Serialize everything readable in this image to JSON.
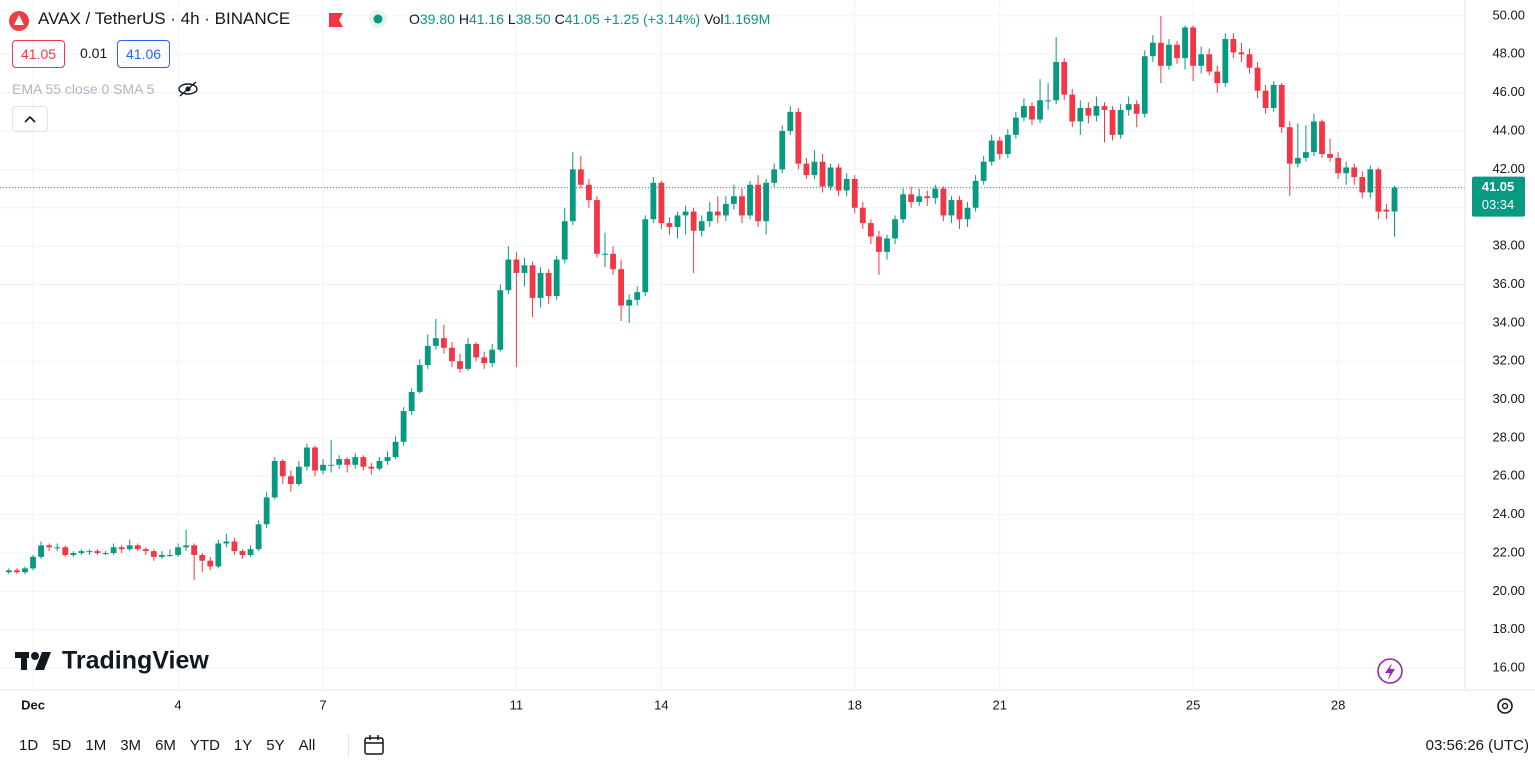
{
  "header": {
    "symbol": "AVAX / TetherUS · 4h · BINANCE",
    "o_label": "O",
    "open": "39.80",
    "h_label": "H",
    "high": "41.16",
    "l_label": "L",
    "low": "38.50",
    "c_label": "C",
    "close": "41.05",
    "change": "+1.25 (+3.14%)",
    "vol_label": "Vol",
    "volume": "1.169M",
    "sell": "41.05",
    "spread": "0.01",
    "buy": "41.06",
    "indicators": "EMA 55 close 0 SMA 5"
  },
  "watermark": "TradingView",
  "toolbar": {
    "ranges": [
      "1D",
      "5D",
      "1M",
      "3M",
      "6M",
      "YTD",
      "1Y",
      "5Y",
      "All"
    ],
    "clock": "03:56:26 (UTC)"
  },
  "chart_data": {
    "type": "candlestick",
    "up_color": "#089981",
    "down_color": "#f23645",
    "grid": true,
    "x": [
      -12,
      -8,
      -4,
      0,
      4,
      8,
      12,
      16,
      20,
      24,
      28,
      32,
      36,
      40,
      44,
      48,
      52,
      56,
      60,
      64,
      68,
      72,
      76,
      80,
      84,
      88,
      92,
      96,
      100,
      104,
      108,
      112,
      116,
      120,
      124,
      128,
      132,
      136,
      140,
      144,
      148,
      152,
      156,
      160,
      164,
      168,
      172,
      176,
      180,
      184,
      188,
      192,
      196,
      200,
      204,
      208,
      212,
      216,
      220,
      224,
      228,
      232,
      236,
      240,
      244,
      248,
      252,
      256,
      260,
      264,
      268,
      272,
      276,
      280,
      284,
      288,
      292,
      296,
      300,
      304,
      308,
      312,
      316,
      320,
      324,
      328,
      332,
      336,
      340,
      344,
      348,
      352,
      356,
      360,
      364,
      368,
      372,
      376,
      380,
      384,
      388,
      392,
      396,
      400,
      404,
      408,
      412,
      416,
      420,
      424,
      428,
      432,
      436,
      440,
      444,
      448,
      452,
      456,
      460,
      464,
      468,
      472,
      476,
      480,
      484,
      488,
      492,
      496,
      500,
      504,
      508,
      512,
      516,
      520,
      524,
      528,
      532,
      536,
      540,
      544,
      548,
      552,
      556,
      560,
      564,
      568,
      572,
      576,
      580,
      584,
      588,
      592,
      596,
      600,
      604,
      608,
      612,
      616,
      620,
      624,
      628,
      632,
      636,
      640,
      644,
      648,
      652,
      656,
      660,
      664,
      668,
      672,
      676
    ],
    "ohlc": [
      [
        21.0,
        21.2,
        20.9,
        21.1
      ],
      [
        21.1,
        21.2,
        20.9,
        21.0
      ],
      [
        21.0,
        21.3,
        20.9,
        21.2
      ],
      [
        21.2,
        21.9,
        21.1,
        21.8
      ],
      [
        21.8,
        22.6,
        21.7,
        22.4
      ],
      [
        22.4,
        22.5,
        22.1,
        22.3
      ],
      [
        22.3,
        22.5,
        22.1,
        22.3
      ],
      [
        22.3,
        22.4,
        21.8,
        21.9
      ],
      [
        21.9,
        22.1,
        21.8,
        22.0
      ],
      [
        22.0,
        22.2,
        21.9,
        22.1
      ],
      [
        22.1,
        22.2,
        21.9,
        22.1
      ],
      [
        22.1,
        22.2,
        21.9,
        22.0
      ],
      [
        22.0,
        22.1,
        21.9,
        22.0
      ],
      [
        22.0,
        22.5,
        21.9,
        22.3
      ],
      [
        22.3,
        22.4,
        22.0,
        22.2
      ],
      [
        22.2,
        22.7,
        22.1,
        22.4
      ],
      [
        22.4,
        22.5,
        22.1,
        22.2
      ],
      [
        22.2,
        22.3,
        21.9,
        22.1
      ],
      [
        22.1,
        22.2,
        21.6,
        21.8
      ],
      [
        21.8,
        22.1,
        21.7,
        21.9
      ],
      [
        21.9,
        22.2,
        21.8,
        21.9
      ],
      [
        21.9,
        22.5,
        21.8,
        22.3
      ],
      [
        22.3,
        23.2,
        22.1,
        22.4
      ],
      [
        22.4,
        22.5,
        20.6,
        21.9
      ],
      [
        21.9,
        22.0,
        21.0,
        21.6
      ],
      [
        21.6,
        21.8,
        21.1,
        21.3
      ],
      [
        21.3,
        22.7,
        21.2,
        22.5
      ],
      [
        22.5,
        23.0,
        22.3,
        22.6
      ],
      [
        22.6,
        22.8,
        21.9,
        22.1
      ],
      [
        22.1,
        22.2,
        21.7,
        21.9
      ],
      [
        21.9,
        22.4,
        21.8,
        22.2
      ],
      [
        22.2,
        23.7,
        22.1,
        23.5
      ],
      [
        23.5,
        25.2,
        23.3,
        24.9
      ],
      [
        24.9,
        27.0,
        24.8,
        26.8
      ],
      [
        26.8,
        26.9,
        25.6,
        26.0
      ],
      [
        26.0,
        26.3,
        25.2,
        25.6
      ],
      [
        25.6,
        26.8,
        25.5,
        26.5
      ],
      [
        26.5,
        27.7,
        26.3,
        27.5
      ],
      [
        27.5,
        27.6,
        26.0,
        26.3
      ],
      [
        26.3,
        26.9,
        26.1,
        26.6
      ],
      [
        26.6,
        27.9,
        26.2,
        26.6
      ],
      [
        26.6,
        27.1,
        26.4,
        26.9
      ],
      [
        26.9,
        27.0,
        26.2,
        26.6
      ],
      [
        26.6,
        27.2,
        26.4,
        27.0
      ],
      [
        27.0,
        27.1,
        26.3,
        26.5
      ],
      [
        26.5,
        26.7,
        26.1,
        26.4
      ],
      [
        26.4,
        27.0,
        26.3,
        26.8
      ],
      [
        26.8,
        27.3,
        26.6,
        27.0
      ],
      [
        27.0,
        28.1,
        26.9,
        27.8
      ],
      [
        27.8,
        29.6,
        27.6,
        29.4
      ],
      [
        29.4,
        30.6,
        29.2,
        30.4
      ],
      [
        30.4,
        32.1,
        30.3,
        31.8
      ],
      [
        31.8,
        33.4,
        31.6,
        32.8
      ],
      [
        32.8,
        34.2,
        32.6,
        33.2
      ],
      [
        33.2,
        33.9,
        32.4,
        32.7
      ],
      [
        32.7,
        33.0,
        31.7,
        32.0
      ],
      [
        32.0,
        32.4,
        31.4,
        31.6
      ],
      [
        31.6,
        33.2,
        31.5,
        32.9
      ],
      [
        32.9,
        33.0,
        32.0,
        32.2
      ],
      [
        32.2,
        32.5,
        31.6,
        31.9
      ],
      [
        31.9,
        32.9,
        31.7,
        32.6
      ],
      [
        32.6,
        36.0,
        32.5,
        35.7
      ],
      [
        35.7,
        38.0,
        35.5,
        37.3
      ],
      [
        37.3,
        37.7,
        31.7,
        36.6
      ],
      [
        36.6,
        37.4,
        35.9,
        37.0
      ],
      [
        37.0,
        37.2,
        34.3,
        35.3
      ],
      [
        35.3,
        36.9,
        34.8,
        36.6
      ],
      [
        36.6,
        36.8,
        35.0,
        35.4
      ],
      [
        35.4,
        37.5,
        35.2,
        37.3
      ],
      [
        37.3,
        40.0,
        37.1,
        39.3
      ],
      [
        39.3,
        42.9,
        39.1,
        42.0
      ],
      [
        42.0,
        42.7,
        41.0,
        41.2
      ],
      [
        41.2,
        41.5,
        40.0,
        40.4
      ],
      [
        40.4,
        40.6,
        37.4,
        37.6
      ],
      [
        37.6,
        38.7,
        36.9,
        37.6
      ],
      [
        37.6,
        38.0,
        36.5,
        36.8
      ],
      [
        36.8,
        37.3,
        34.1,
        34.9
      ],
      [
        34.9,
        35.5,
        34.0,
        35.2
      ],
      [
        35.2,
        35.9,
        34.9,
        35.6
      ],
      [
        35.6,
        39.6,
        35.4,
        39.4
      ],
      [
        39.4,
        41.6,
        39.2,
        41.3
      ],
      [
        41.3,
        41.4,
        38.9,
        39.2
      ],
      [
        39.2,
        39.5,
        38.6,
        39.0
      ],
      [
        39.0,
        39.8,
        38.4,
        39.6
      ],
      [
        39.6,
        40.1,
        38.6,
        39.8
      ],
      [
        39.8,
        40.0,
        36.6,
        38.8
      ],
      [
        38.8,
        39.6,
        38.5,
        39.3
      ],
      [
        39.3,
        40.3,
        39.0,
        39.8
      ],
      [
        39.8,
        40.6,
        39.2,
        39.6
      ],
      [
        39.6,
        40.6,
        39.3,
        40.2
      ],
      [
        40.2,
        41.2,
        39.9,
        40.6
      ],
      [
        40.6,
        41.0,
        39.2,
        39.6
      ],
      [
        39.6,
        41.4,
        39.4,
        41.2
      ],
      [
        41.2,
        41.7,
        39.0,
        39.3
      ],
      [
        39.3,
        41.5,
        38.6,
        41.3
      ],
      [
        41.3,
        42.3,
        41.1,
        42.0
      ],
      [
        42.0,
        44.3,
        41.8,
        44.0
      ],
      [
        44.0,
        45.3,
        43.8,
        45.0
      ],
      [
        45.0,
        45.2,
        42.0,
        42.3
      ],
      [
        42.3,
        42.6,
        41.5,
        41.7
      ],
      [
        41.7,
        43.0,
        41.5,
        42.4
      ],
      [
        42.4,
        42.8,
        40.8,
        41.1
      ],
      [
        41.1,
        42.3,
        40.9,
        42.1
      ],
      [
        42.1,
        42.3,
        40.6,
        40.9
      ],
      [
        40.9,
        41.8,
        40.6,
        41.5
      ],
      [
        41.5,
        41.7,
        39.7,
        40.0
      ],
      [
        40.0,
        40.3,
        38.9,
        39.2
      ],
      [
        39.2,
        39.4,
        38.1,
        38.5
      ],
      [
        38.5,
        38.8,
        36.5,
        37.7
      ],
      [
        37.7,
        38.6,
        37.3,
        38.4
      ],
      [
        38.4,
        39.6,
        38.1,
        39.4
      ],
      [
        39.4,
        41.0,
        39.2,
        40.7
      ],
      [
        40.7,
        41.1,
        40.0,
        40.3
      ],
      [
        40.3,
        41.0,
        40.1,
        40.6
      ],
      [
        40.6,
        40.9,
        40.1,
        40.5
      ],
      [
        40.5,
        41.2,
        40.2,
        41.0
      ],
      [
        41.0,
        41.1,
        39.3,
        39.6
      ],
      [
        39.6,
        40.6,
        39.2,
        40.4
      ],
      [
        40.4,
        40.6,
        38.9,
        39.4
      ],
      [
        39.4,
        40.3,
        39.0,
        40.0
      ],
      [
        40.0,
        41.7,
        39.8,
        41.4
      ],
      [
        41.4,
        42.7,
        41.2,
        42.4
      ],
      [
        42.4,
        43.8,
        42.2,
        43.5
      ],
      [
        43.5,
        43.7,
        42.5,
        42.8
      ],
      [
        42.8,
        44.1,
        42.6,
        43.8
      ],
      [
        43.8,
        45.0,
        43.6,
        44.7
      ],
      [
        44.7,
        45.7,
        44.5,
        45.3
      ],
      [
        45.3,
        45.5,
        44.3,
        44.6
      ],
      [
        44.6,
        46.7,
        44.4,
        45.6
      ],
      [
        45.6,
        46.5,
        45.1,
        45.6
      ],
      [
        45.6,
        48.9,
        45.4,
        47.6
      ],
      [
        47.6,
        47.8,
        45.6,
        45.9
      ],
      [
        45.9,
        46.2,
        44.2,
        44.5
      ],
      [
        44.5,
        45.6,
        43.8,
        45.2
      ],
      [
        45.2,
        45.5,
        44.4,
        44.8
      ],
      [
        44.8,
        45.8,
        44.5,
        45.3
      ],
      [
        45.3,
        45.5,
        43.4,
        45.1
      ],
      [
        45.1,
        45.3,
        43.5,
        43.8
      ],
      [
        43.8,
        45.4,
        43.6,
        45.1
      ],
      [
        45.1,
        45.8,
        44.8,
        45.4
      ],
      [
        45.4,
        45.6,
        44.2,
        44.9
      ],
      [
        44.9,
        48.2,
        44.7,
        47.9
      ],
      [
        47.9,
        49.0,
        47.6,
        48.6
      ],
      [
        48.6,
        50.0,
        46.5,
        47.4
      ],
      [
        47.4,
        48.8,
        47.2,
        48.5
      ],
      [
        48.5,
        48.7,
        47.5,
        47.8
      ],
      [
        47.8,
        49.5,
        47.2,
        49.4
      ],
      [
        49.4,
        49.5,
        46.6,
        47.4
      ],
      [
        47.4,
        48.4,
        47.0,
        48.0
      ],
      [
        48.0,
        48.3,
        46.9,
        47.1
      ],
      [
        47.1,
        47.4,
        46.0,
        46.5
      ],
      [
        46.5,
        49.1,
        46.3,
        48.8
      ],
      [
        48.8,
        49.1,
        47.8,
        48.1
      ],
      [
        48.1,
        48.6,
        47.6,
        48.0
      ],
      [
        48.0,
        48.3,
        47.0,
        47.3
      ],
      [
        47.3,
        47.6,
        45.7,
        46.1
      ],
      [
        46.1,
        46.4,
        44.9,
        45.2
      ],
      [
        45.2,
        46.6,
        45.0,
        46.4
      ],
      [
        46.4,
        46.5,
        43.9,
        44.2
      ],
      [
        44.2,
        44.5,
        40.6,
        42.3
      ],
      [
        42.3,
        44.4,
        42.1,
        42.6
      ],
      [
        42.6,
        44.3,
        42.4,
        42.9
      ],
      [
        42.9,
        44.9,
        42.7,
        44.5
      ],
      [
        44.5,
        44.6,
        42.6,
        42.8
      ],
      [
        42.8,
        43.6,
        42.4,
        42.6
      ],
      [
        42.6,
        42.9,
        41.5,
        41.8
      ],
      [
        41.8,
        42.4,
        41.2,
        42.1
      ],
      [
        42.1,
        42.3,
        41.2,
        41.6
      ],
      [
        41.6,
        41.9,
        40.5,
        40.8
      ],
      [
        40.8,
        42.2,
        40.5,
        42.0
      ],
      [
        42.0,
        42.1,
        39.4,
        39.8
      ],
      [
        39.9,
        40.2,
        39.4,
        39.8
      ],
      [
        39.8,
        41.16,
        38.5,
        41.05
      ]
    ],
    "xlim": [
      -16.4,
      711.0
    ],
    "xticks": [
      {
        "value": 0,
        "label": "Dec"
      },
      {
        "value": 72,
        "label": "4"
      },
      {
        "value": 144,
        "label": "7"
      },
      {
        "value": 240,
        "label": "11"
      },
      {
        "value": 312,
        "label": "14"
      },
      {
        "value": 408,
        "label": "18"
      },
      {
        "value": 480,
        "label": "21"
      },
      {
        "value": 576,
        "label": "25"
      },
      {
        "value": 648,
        "label": "28"
      }
    ],
    "ylim": [
      14.86,
      50.83
    ],
    "yticks": [
      {
        "value": 16,
        "label": "16.00"
      },
      {
        "value": 18,
        "label": "18.00"
      },
      {
        "value": 20,
        "label": "20.00"
      },
      {
        "value": 22,
        "label": "22.00"
      },
      {
        "value": 24,
        "label": "24.00"
      },
      {
        "value": 26,
        "label": "26.00"
      },
      {
        "value": 28,
        "label": "28.00"
      },
      {
        "value": 30,
        "label": "30.00"
      },
      {
        "value": 32,
        "label": "32.00"
      },
      {
        "value": 34,
        "label": "34.00"
      },
      {
        "value": 36,
        "label": "36.00"
      },
      {
        "value": 38,
        "label": "38.00"
      },
      {
        "value": 40,
        "label": "40.00"
      },
      {
        "value": 42,
        "label": "42.00"
      },
      {
        "value": 44,
        "label": "44.00"
      },
      {
        "value": 46,
        "label": "46.00"
      },
      {
        "value": 48,
        "label": "48.00"
      },
      {
        "value": 50,
        "label": "50.00"
      }
    ],
    "last_price": {
      "value": 41.05,
      "label": "41.05"
    },
    "countdown": "03:34"
  }
}
